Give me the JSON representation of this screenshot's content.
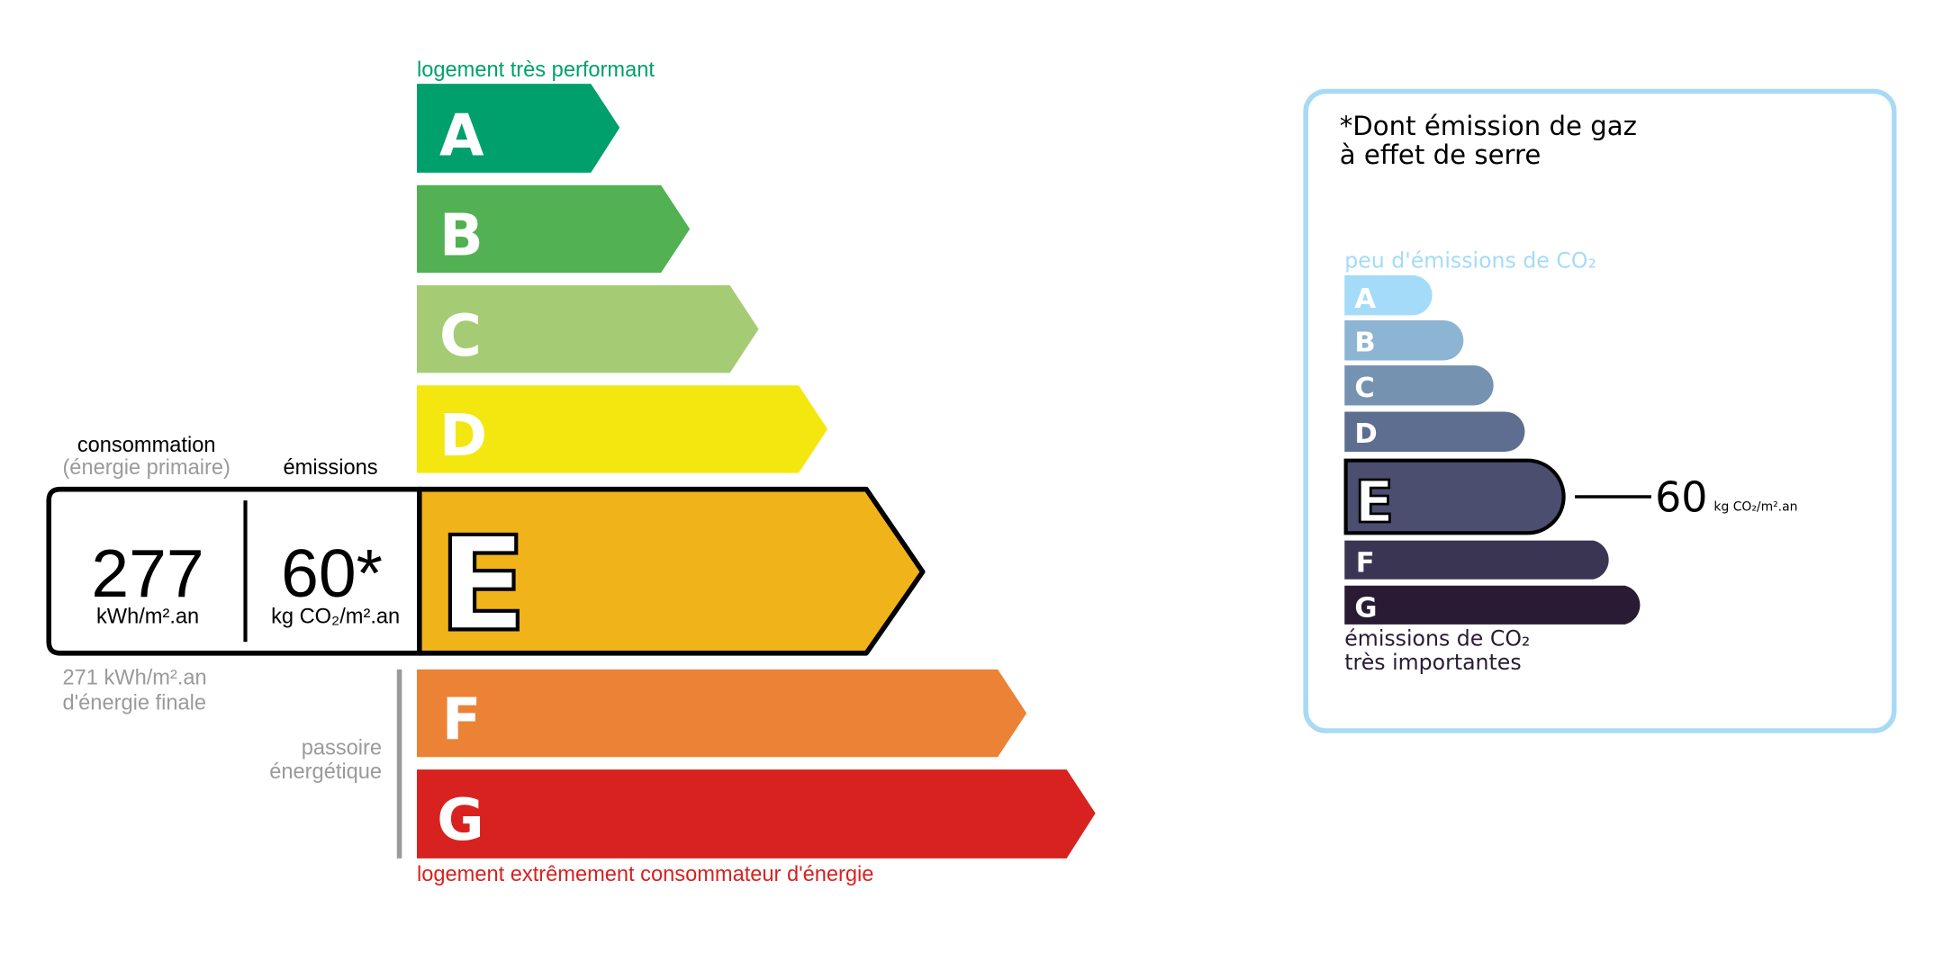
{
  "energy": {
    "top_label": "logement très performant",
    "bottom_label": "logement extrêmement consommateur d'énergie",
    "top_label_color": "#00a06d",
    "bottom_label_color": "#d7221f",
    "classes": [
      {
        "letter": "A",
        "color": "#00a06d"
      },
      {
        "letter": "B",
        "color": "#52b153"
      },
      {
        "letter": "C",
        "color": "#a5cc74"
      },
      {
        "letter": "D",
        "color": "#f4e70f"
      },
      {
        "letter": "E",
        "color": "#f0b41a"
      },
      {
        "letter": "F",
        "color": "#ec8235"
      },
      {
        "letter": "G",
        "color": "#d7221f"
      }
    ],
    "current_class": "E",
    "consumption_label": "consommation",
    "consumption_sublabel": "(énergie primaire)",
    "emissions_label": "émissions",
    "consumption_value": "277",
    "consumption_unit": "kWh/m².an",
    "emissions_value": "60*",
    "emissions_unit": "kg CO₂/m².an",
    "final_energy_value": "271 kWh/m².an",
    "final_energy_label": "d'énergie finale",
    "passoire_line1": "passoire",
    "passoire_line2": "énergétique"
  },
  "ghg": {
    "title_line1": "*Dont émission de gaz",
    "title_line2": "à effet de serre",
    "top_label": "peu d'émissions de CO₂",
    "bottom_label_line1": "émissions de CO₂",
    "bottom_label_line2": "très importantes",
    "border_color": "#a8daf5",
    "classes": [
      {
        "letter": "A",
        "color": "#a4dbf8"
      },
      {
        "letter": "B",
        "color": "#8cb4d3"
      },
      {
        "letter": "C",
        "color": "#7692b1"
      },
      {
        "letter": "D",
        "color": "#5e6e90"
      },
      {
        "letter": "E",
        "color": "#4b4e6f"
      },
      {
        "letter": "F",
        "color": "#3a3552"
      },
      {
        "letter": "G",
        "color": "#2a1b34"
      }
    ],
    "current_class": "E",
    "value": "60",
    "unit": "kg CO₂/m².an"
  }
}
